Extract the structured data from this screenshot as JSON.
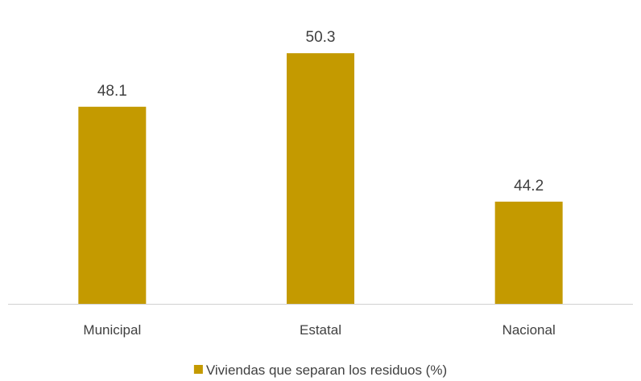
{
  "chart_data": {
    "type": "bar",
    "categories": [
      "Municipal",
      "Estatal",
      "Nacional"
    ],
    "series": [
      {
        "name": "Viviendas que separan los residuos (%)",
        "values": [
          48.1,
          50.3,
          44.2
        ],
        "color": "#C49A00"
      }
    ],
    "data_labels": [
      "48.1",
      "50.3",
      "44.2"
    ],
    "title": "",
    "xlabel": "",
    "ylabel": "",
    "ylim": [
      40,
      51
    ],
    "grid": false,
    "legend_position": "bottom",
    "y_axis_visible": false
  }
}
